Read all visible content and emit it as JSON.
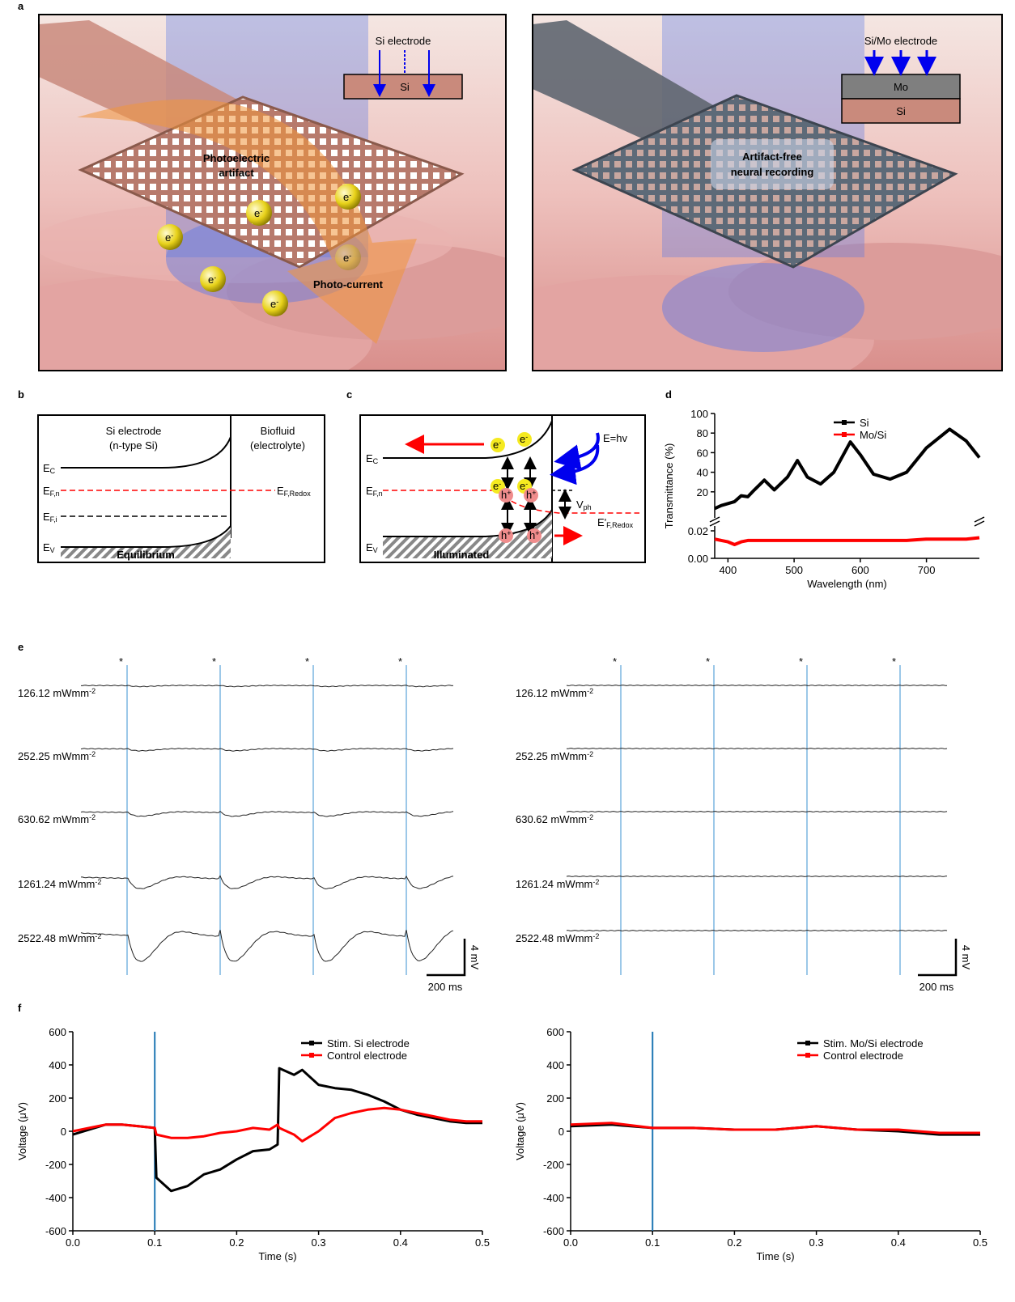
{
  "figure": {
    "panel_labels": [
      "a",
      "b",
      "c",
      "d",
      "e",
      "f"
    ],
    "panel_a": {
      "si_inset_title": "Si electrode",
      "si_layer": "Si",
      "artifact_label": [
        "Photoelectric",
        "artifact"
      ],
      "electron": [
        "e",
        "-"
      ],
      "current_label": "Photo-current",
      "mo_inset_title": "Si/Mo electrode",
      "mo_layers": [
        "Mo",
        "Si"
      ],
      "recording_label": [
        "Artifact-free",
        "neural recording"
      ]
    },
    "panel_b": {
      "electrode_label": [
        "Si electrode",
        "(n-type Si)"
      ],
      "fluid_label": [
        "Biofluid",
        "(electrolyte)"
      ],
      "ec": [
        "E",
        "C"
      ],
      "efn": [
        "E",
        "F,n"
      ],
      "eredox": [
        "E",
        "F,Redox"
      ],
      "efi": [
        "E",
        "F,i"
      ],
      "ev": [
        "E",
        "V"
      ],
      "caption": "Equilibrium"
    },
    "panel_c": {
      "electron": [
        "e",
        "-"
      ],
      "hole": [
        "h",
        "+"
      ],
      "photon": "E=hv",
      "ec": [
        "E",
        "C"
      ],
      "efn": [
        "E",
        "F,n"
      ],
      "vph": [
        "V",
        "ph"
      ],
      "eredox": [
        "E'",
        "F,Redox"
      ],
      "ev": [
        "E",
        "V"
      ],
      "caption": "Illuminated"
    },
    "panel_e": {
      "intensities": [
        [
          "126.12 mWmm",
          "-2"
        ],
        [
          "252.25 mWmm",
          "-2"
        ],
        [
          "630.62 mWmm",
          "-2"
        ],
        [
          "1261.24 mWmm",
          "-2"
        ],
        [
          "2522.48 mWmm",
          "-2"
        ]
      ],
      "stim_marker": "*",
      "voltage_scale": "4 mV",
      "time_scale": "200 ms"
    }
  },
  "chart_data": [
    {
      "type": "line",
      "x_label": "Wavelength (nm)",
      "y_label": "Transmittance (%)",
      "x": [
        380,
        390,
        400,
        410,
        420,
        430,
        440,
        455,
        470,
        490,
        505,
        520,
        540,
        560,
        585,
        600,
        620,
        645,
        670,
        700,
        735,
        760,
        780
      ],
      "series": [
        {
          "name": "Si",
          "color": "#000000",
          "values": [
            3,
            6,
            8,
            10,
            16,
            15,
            22,
            32,
            22,
            35,
            52,
            35,
            28,
            40,
            71,
            58,
            38,
            33,
            40,
            65,
            84,
            72,
            55
          ]
        },
        {
          "name": "Mo/Si",
          "color": "#ff0000",
          "axis": "y2",
          "values": [
            0.014,
            0.013,
            0.012,
            0.01,
            0.012,
            0.013,
            0.013,
            0.013,
            0.013,
            0.013,
            0.013,
            0.013,
            0.013,
            0.013,
            0.013,
            0.013,
            0.013,
            0.013,
            0.013,
            0.014,
            0.014,
            0.014,
            0.015
          ]
        }
      ],
      "xlim": [
        380,
        780
      ],
      "xticks": [
        400,
        500,
        600,
        700
      ],
      "ylim": [
        0,
        100
      ],
      "yticks": [
        20,
        40,
        60,
        80,
        100
      ],
      "y2lim": [
        0,
        0.02
      ],
      "y2ticks": [
        {
          "value": 0,
          "label": "0.00"
        },
        {
          "value": 0.02,
          "label": "0.02"
        }
      ],
      "legend": "upper right"
    },
    {
      "type": "line",
      "x_label": "Time (s)",
      "y_label": "Voltage (μV)",
      "x": [
        0,
        0.02,
        0.04,
        0.06,
        0.08,
        0.1,
        0.102,
        0.12,
        0.14,
        0.16,
        0.18,
        0.2,
        0.22,
        0.24,
        0.25,
        0.252,
        0.27,
        0.28,
        0.3,
        0.32,
        0.34,
        0.36,
        0.38,
        0.4,
        0.42,
        0.44,
        0.46,
        0.48,
        0.5
      ],
      "series": [
        {
          "name": "Stim. Si electrode",
          "color": "#000000",
          "values": [
            -20,
            10,
            40,
            40,
            30,
            20,
            -280,
            -360,
            -330,
            -260,
            -230,
            -170,
            -120,
            -110,
            -80,
            380,
            340,
            370,
            280,
            260,
            250,
            220,
            180,
            130,
            100,
            80,
            60,
            50,
            50
          ]
        },
        {
          "name": "Control electrode",
          "color": "#ff0000",
          "values": [
            0,
            20,
            40,
            40,
            30,
            20,
            -20,
            -40,
            -40,
            -30,
            -10,
            0,
            20,
            10,
            40,
            20,
            -20,
            -60,
            0,
            80,
            110,
            130,
            140,
            130,
            110,
            90,
            70,
            60,
            60
          ]
        }
      ],
      "xlim": [
        0,
        0.5
      ],
      "xticks": [
        {
          "value": 0,
          "label": "0.0"
        },
        0.1,
        0.2,
        0.3,
        0.4,
        {
          "value": 0.5,
          "label": "0.5"
        }
      ],
      "ylim": [
        -600,
        600
      ],
      "yticks": [
        -600,
        -400,
        -200,
        0,
        200,
        400,
        600
      ],
      "vline": 0.1,
      "vline_color": "#1f77b4",
      "legend": "upper right"
    },
    {
      "type": "line",
      "x_label": "Time (s)",
      "y_label": "Voltage (μV)",
      "x": [
        0,
        0.05,
        0.1,
        0.15,
        0.2,
        0.25,
        0.3,
        0.35,
        0.4,
        0.45,
        0.5
      ],
      "series": [
        {
          "name": "Stim. Mo/Si electrode",
          "color": "#000000",
          "values": [
            30,
            40,
            20,
            20,
            10,
            10,
            30,
            10,
            0,
            -20,
            -20
          ]
        },
        {
          "name": "Control electrode",
          "color": "#ff0000",
          "values": [
            40,
            50,
            20,
            20,
            10,
            10,
            30,
            10,
            10,
            -10,
            -10
          ]
        }
      ],
      "xlim": [
        0,
        0.5
      ],
      "xticks": [
        {
          "value": 0,
          "label": "0.0"
        },
        0.1,
        0.2,
        0.3,
        0.4,
        {
          "value": 0.5,
          "label": "0.5"
        }
      ],
      "ylim": [
        -600,
        600
      ],
      "yticks": [
        -600,
        -400,
        -200,
        0,
        200,
        400,
        600
      ],
      "vline": 0.1,
      "vline_color": "#1f77b4",
      "legend": "upper right"
    }
  ]
}
